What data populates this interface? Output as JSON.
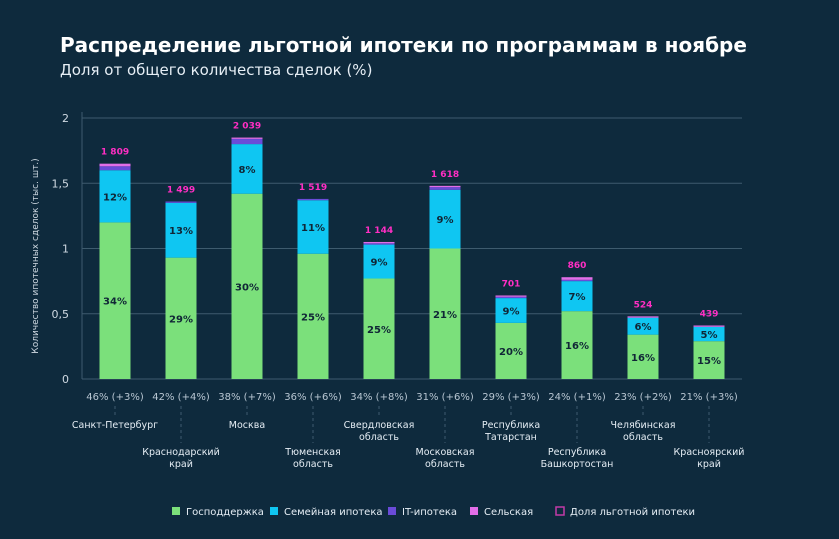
{
  "chart_data": {
    "type": "bar",
    "title": "Распределение льготной ипотеки по программам в ноябре",
    "subtitle": "Доля от общего количества сделок (%)",
    "ylabel": "Количество ипотечных сделок (тыс. шт.)",
    "ylim": [
      0,
      2
    ],
    "yticks": [
      "0",
      "0,5",
      "1",
      "1,5",
      "2"
    ],
    "ytick_values": [
      0,
      0.5,
      1,
      1.5,
      2
    ],
    "grid": true,
    "legend_position": "bottom",
    "categories": [
      [
        "Санкт-Петербург"
      ],
      [
        "Краснодарский",
        "край"
      ],
      [
        "Москва"
      ],
      [
        "Тюменская",
        "область"
      ],
      [
        "Свердловская",
        "область"
      ],
      [
        "Московская",
        "область"
      ],
      [
        "Республика",
        "Татарстан"
      ],
      [
        "Республика",
        "Башкортостан"
      ],
      [
        "Челябинская",
        "область"
      ],
      [
        "Красноярский",
        "край"
      ]
    ],
    "shares": [
      "46% (+3%)",
      "42% (+4%)",
      "38% (+7%)",
      "36% (+6%)",
      "34% (+8%)",
      "31% (+6%)",
      "29% (+3%)",
      "24% (+1%)",
      "23% (+2%)",
      "21% (+3%)"
    ],
    "totals": [
      "1 809",
      "1 499",
      "2 039",
      "1 519",
      "1 144",
      "1 618",
      "701",
      "860",
      "524",
      "439"
    ],
    "series": [
      {
        "name": "Господдержка",
        "color": "#7be07b",
        "values": [
          1.2,
          0.93,
          1.42,
          0.96,
          0.77,
          1.0,
          0.43,
          0.52,
          0.34,
          0.29
        ],
        "labels": [
          "34%",
          "29%",
          "30%",
          "25%",
          "25%",
          "21%",
          "20%",
          "16%",
          "16%",
          "15%"
        ]
      },
      {
        "name": "Семейная ипотека",
        "color": "#0fc6f2",
        "values": [
          0.4,
          0.42,
          0.38,
          0.41,
          0.26,
          0.45,
          0.19,
          0.23,
          0.13,
          0.11
        ],
        "labels": [
          "12%",
          "13%",
          "8%",
          "11%",
          "9%",
          "9%",
          "9%",
          "7%",
          "6%",
          "5%"
        ]
      },
      {
        "name": "IT-ипотека",
        "color": "#6a4bd8",
        "values": [
          0.03,
          0.01,
          0.04,
          0.01,
          0.01,
          0.02,
          0.01,
          0.01,
          0.0,
          0.0
        ],
        "labels": [
          "",
          "",
          "",
          "",
          "",
          "",
          "",
          "",
          "",
          ""
        ]
      },
      {
        "name": "Сельская",
        "color": "#e26ee8",
        "values": [
          0.02,
          0.0,
          0.01,
          0.0,
          0.01,
          0.01,
          0.01,
          0.02,
          0.01,
          0.01
        ],
        "labels": [
          "",
          "",
          "",
          "",
          "",
          "",
          "",
          "",
          "",
          ""
        ]
      }
    ],
    "legend": [
      {
        "name": "Господдержка",
        "color": "#7be07b"
      },
      {
        "name": "Семейная ипотека",
        "color": "#0fc6f2"
      },
      {
        "name": "IT-ипотека",
        "color": "#6a4bd8"
      },
      {
        "name": "Сельская",
        "color": "#e26ee8"
      },
      {
        "name": "Доля льготной ипотеки",
        "color": "#c23aa8"
      }
    ],
    "colors": {
      "background": "#0e2a3d",
      "grid": "#3e5b6e",
      "total_label": "#ff2ec4"
    }
  }
}
